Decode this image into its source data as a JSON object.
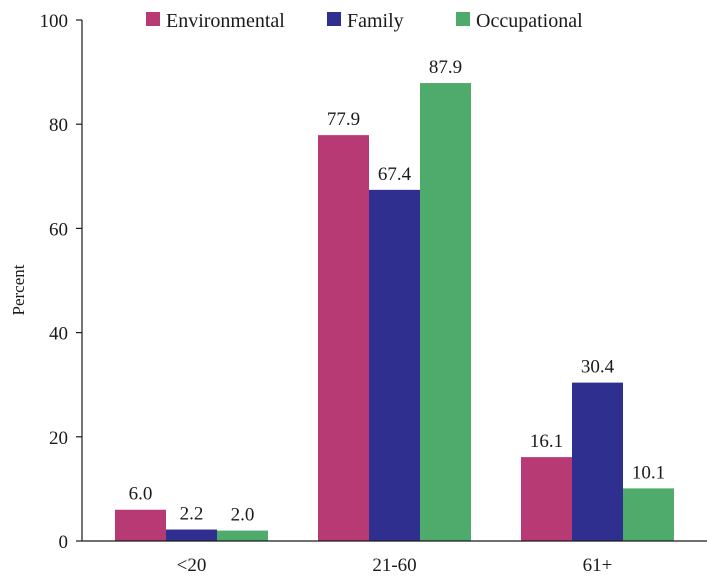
{
  "chart_data": {
    "type": "bar",
    "title": "",
    "xlabel": "",
    "ylabel": "Percent",
    "ylim": [
      0,
      100
    ],
    "yticks": [
      0,
      20,
      40,
      60,
      80,
      100
    ],
    "categories": [
      "<20",
      "21-60",
      "61+"
    ],
    "series": [
      {
        "name": "Environmental",
        "color": "#b73a74",
        "values": [
          6.0,
          77.9,
          16.1
        ],
        "labels": [
          "6.0",
          "77.9",
          "16.1"
        ]
      },
      {
        "name": "Family",
        "color": "#2e2f8f",
        "values": [
          2.2,
          67.4,
          30.4
        ],
        "labels": [
          "2.2",
          "67.4",
          "30.4"
        ]
      },
      {
        "name": "Occupational",
        "color": "#4fab6b",
        "values": [
          2.0,
          87.9,
          10.1
        ],
        "labels": [
          "2.0",
          "87.9",
          "10.1"
        ]
      }
    ],
    "legend_position": "top",
    "grid": false
  }
}
